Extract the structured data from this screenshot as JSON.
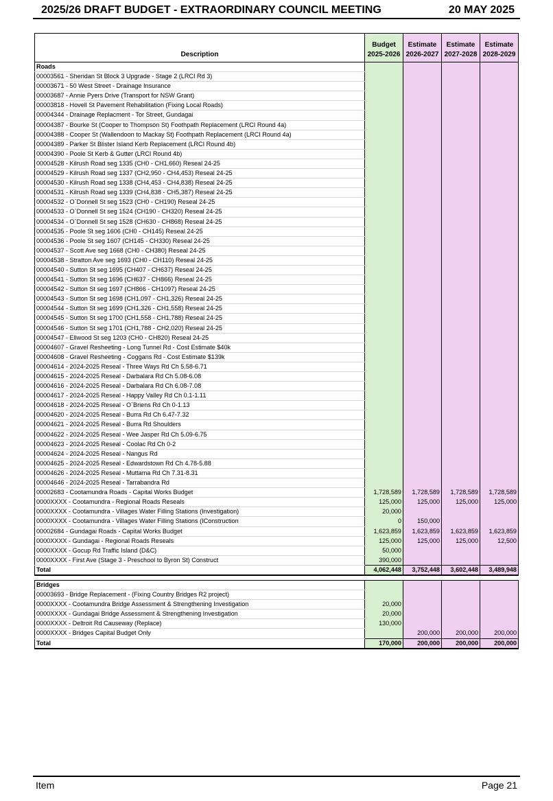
{
  "header": {
    "title": "2025/26 DRAFT BUDGET - EXTRAORDINARY COUNCIL MEETING",
    "date": "20 MAY 2025"
  },
  "columns": {
    "description": "Description",
    "c1": [
      "Budget",
      "2025-2026"
    ],
    "c2": [
      "Estimate",
      "2026-2027"
    ],
    "c3": [
      "Estimate",
      "2027-2028"
    ],
    "c4": [
      "Estimate",
      "2028-2029"
    ]
  },
  "sections": [
    {
      "title": "Roads",
      "rows": [
        [
          "00003561 - Sheridan St Block 3 Upgrade - Stage 2  (LRCI Rd 3)",
          "",
          "",
          "",
          ""
        ],
        [
          "00003671 - 50 West Street - Drainage Insurance",
          "",
          "",
          "",
          ""
        ],
        [
          "00003687 - Annie Pyers Drive (Transport for NSW Grant)",
          "",
          "",
          "",
          ""
        ],
        [
          "00003818 - Hovell St Pavement Rehabilitation (Fixing Local Roads)",
          "",
          "",
          "",
          ""
        ],
        [
          "00004344 - Drainage Replacment - Tor Street, Gundagai",
          "",
          "",
          "",
          ""
        ],
        [
          "00004387 - Bourke St (Cooper to Thompson St) Foothpath Replacement (LRCI Round 4a)",
          "",
          "",
          "",
          ""
        ],
        [
          "00004388 - Cooper St (Wallendoon to Mackay St) Foothpath Replacement (LRCI Round 4a)",
          "",
          "",
          "",
          ""
        ],
        [
          "00004389 - Parker St Blister Island Kerb Replacement (LRCI Round 4b)",
          "",
          "",
          "",
          ""
        ],
        [
          "00004390 - Poole St Kerb & Gutter (LRCI Round 4b)",
          "",
          "",
          "",
          ""
        ],
        [
          "00004528 - Kilrush Road seg 1335 (CH0 - CH1,660) Reseal 24-25",
          "",
          "",
          "",
          ""
        ],
        [
          "00004529 - Kilrush Road seg 1337 (CH2,950 - CH4,453) Reseal 24-25",
          "",
          "",
          "",
          ""
        ],
        [
          "00004530 - Kilrush Road seg 1338 (CH4,453 - CH4,838) Reseal 24-25",
          "",
          "",
          "",
          ""
        ],
        [
          "00004531 - Kilrush Road seg 1339 (CH4,838 - CH5,387) Reseal 24-25",
          "",
          "",
          "",
          ""
        ],
        [
          "00004532 - O`Donnell St seg 1523 (CH0 - CH190) Reseal 24-25",
          "",
          "",
          "",
          ""
        ],
        [
          "00004533 - O`Donnell St seg 1524 (CH190 - CH320) Reseal 24-25",
          "",
          "",
          "",
          ""
        ],
        [
          "00004534 - O`Donnell St seg 1528 (CH630 - CH868) Reseal 24-25",
          "",
          "",
          "",
          ""
        ],
        [
          "00004535 - Poole St seg 1606 (CH0 - CH145) Reseal 24-25",
          "",
          "",
          "",
          ""
        ],
        [
          "00004536 - Poole St seg 1607 (CH145 - CH330) Reseal 24-25",
          "",
          "",
          "",
          ""
        ],
        [
          "00004537 - Scott Ave seg 1668 (CH0 - CH380) Reseal 24-25",
          "",
          "",
          "",
          ""
        ],
        [
          "00004538 - Stratton Ave seg 1693 (CH0 - CH110) Reseal 24-25",
          "",
          "",
          "",
          ""
        ],
        [
          "00004540 - Sutton St seg 1695 (CH407 - CH637) Reseal 24-25",
          "",
          "",
          "",
          ""
        ],
        [
          "00004541 - Sutton St seg 1696 (CH637 - CH866) Reseal 24-25",
          "",
          "",
          "",
          ""
        ],
        [
          "00004542 - Sutton St seg 1697 (CH866 - CH1097) Reseal 24-25",
          "",
          "",
          "",
          ""
        ],
        [
          "00004543 - Sutton St seg 1698 (CH1,097 - CH1,326) Reseal 24-25",
          "",
          "",
          "",
          ""
        ],
        [
          "00004544 - Sutton St seg 1699 (CH1,326 - CH1,558) Reseal 24-25",
          "",
          "",
          "",
          ""
        ],
        [
          "00004545 - Sutton St seg 1700 (CH1,558 - CH1,788) Reseal 24-25",
          "",
          "",
          "",
          ""
        ],
        [
          "00004546 - Sutton St seg 1701 (CH1,788 - CH2,020) Reseal 24-25",
          "",
          "",
          "",
          ""
        ],
        [
          "00004547 - Ellwood St seg 1203 (CH0 - CH820) Reseal 24-25",
          "",
          "",
          "",
          ""
        ],
        [
          "00004607 - Gravel Resheeting - Long Tunnel Rd - Cost Estimate $40k",
          "",
          "",
          "",
          ""
        ],
        [
          "00004608 - Gravel Resheeting - Coggans Rd - Cost Estimate $139k",
          "",
          "",
          "",
          ""
        ],
        [
          "00004614 - 2024-2025 Reseal - Three Ways Rd Ch 5.58-6.71",
          "",
          "",
          "",
          ""
        ],
        [
          "00004615 - 2024-2025 Reseal - Darbalara Rd Ch 5.08-6.08",
          "",
          "",
          "",
          ""
        ],
        [
          "00004616 - 2024-2025 Reseal - Darbalara Rd Ch 6.08-7.08",
          "",
          "",
          "",
          ""
        ],
        [
          "00004617 - 2024-2025 Reseal - Happy Valley Rd Ch 0.1-1.11",
          "",
          "",
          "",
          ""
        ],
        [
          "00004618 - 2024-2025 Reseal - O`Briens Rd Ch 0-1.13",
          "",
          "",
          "",
          ""
        ],
        [
          "00004620 - 2024-2025 Reseal - Burra Rd Ch 6.47-7.32",
          "",
          "",
          "",
          ""
        ],
        [
          "00004621 - 2024-2025 Reseal - Burra Rd Shoulders",
          "",
          "",
          "",
          ""
        ],
        [
          "00004622 - 2024-2025 Reseal - Wee Jasper Rd Ch 5.09-6.75",
          "",
          "",
          "",
          ""
        ],
        [
          "00004623 - 2024-2025 Reseal - Coolac Rd Ch 0-2",
          "",
          "",
          "",
          ""
        ],
        [
          "00004624 - 2024-2025 Reseal - Nangus Rd",
          "",
          "",
          "",
          ""
        ],
        [
          "00004625 - 2024-2025 Reseal - Edwardstown Rd Ch 4.78-5.88",
          "",
          "",
          "",
          ""
        ],
        [
          "00004626 - 2024-2025 Reseal - Muttama Rd Ch 7.31-8.31",
          "",
          "",
          "",
          ""
        ],
        [
          "00004646 - 2024-2025 Reseal - Tarrabandra Rd",
          "",
          "",
          "",
          ""
        ],
        [
          "00002683 - Cootamundra Roads - Capital Works Budget",
          "1,728,589",
          "1,728,589",
          "1,728,589",
          "1,728,589"
        ],
        [
          "0000XXXX - Cootamundra - Regional Roads Reseals",
          "125,000",
          "125,000",
          "125,000",
          "125,000"
        ],
        [
          "0000XXXX - Cootamundra - Villages Water Filling Stations (Investigation)",
          "20,000",
          "",
          "",
          ""
        ],
        [
          "0000XXXX - Cootamundra - Villages Water Filling Stations (IConstruction",
          "0",
          "150,000",
          "",
          ""
        ],
        [
          "00002684 - Gundagai Roads - Capital Works Budget",
          "1,623,859",
          "1,623,859",
          "1,623,859",
          "1,623,859"
        ],
        [
          "0000XXXX - Gundagai - Regional Roads Reseals",
          "125,000",
          "125,000",
          "125,000",
          "12,500"
        ],
        [
          "0000XXXX - Gocup Rd Traffic Island (D&C)",
          "50,000",
          "",
          "",
          ""
        ],
        [
          "0000XXXX - First Ave (Stage 3 - Preschool to Byron St) Construct",
          "390,000",
          "",
          "",
          ""
        ]
      ],
      "total": [
        "Total",
        "4,062,448",
        "3,752,448",
        "3,602,448",
        "3,489,948"
      ]
    },
    {
      "title": "Bridges",
      "rows": [
        [
          "00003693 - Bridge Replacement - (Fixing Country Bridges R2 project)",
          "",
          "",
          "",
          ""
        ],
        [
          "0000XXXX - Cootamundra Bridge Assessment & Strengthening Investigation",
          "20,000",
          "",
          "",
          ""
        ],
        [
          "0000XXXX - Gundagai Bridge Assessment & Strengthening Investigation",
          "20,000",
          "",
          "",
          ""
        ],
        [
          "0000XXXX - Deltroit Rd Causeway (Replace)",
          "130,000",
          "",
          "",
          ""
        ],
        [
          "0000XXXX - Bridges Capital Budget Only",
          "",
          "200,000",
          "200,000",
          "200,000"
        ]
      ],
      "total": [
        "Total",
        "170,000",
        "200,000",
        "200,000",
        "200,000"
      ]
    }
  ],
  "footer": {
    "left": "Item",
    "right": "Page 21"
  },
  "colors": {
    "budget": "#d8f0d0",
    "estimate": "#f0d0f0"
  }
}
